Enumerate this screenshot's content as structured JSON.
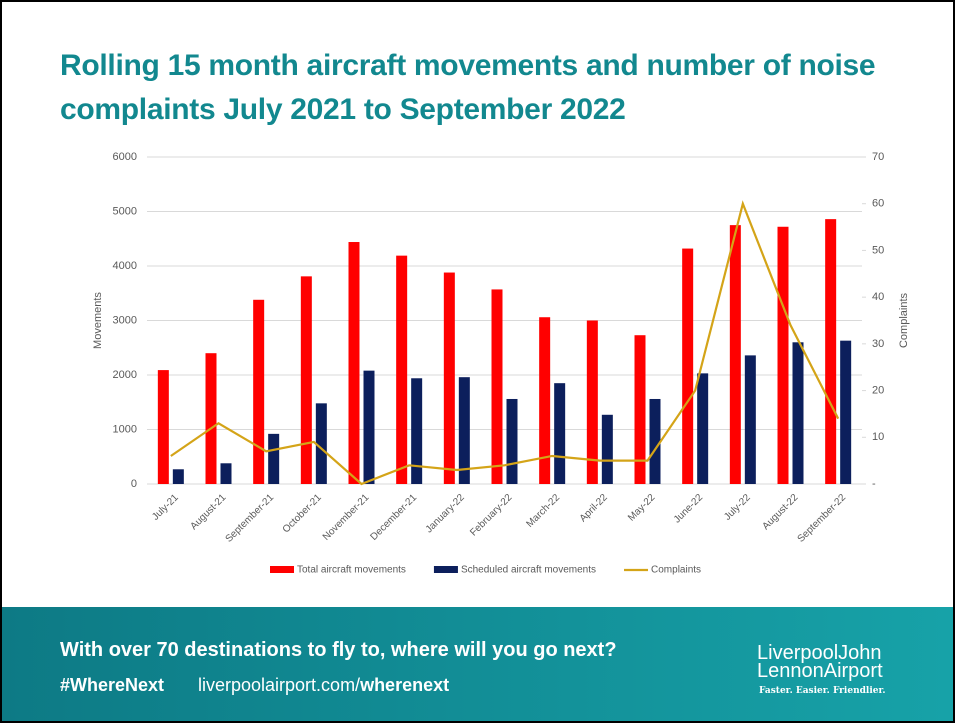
{
  "chart_data": {
    "type": "bar",
    "title": "Rolling 15 month aircraft movements and number of noise complaints July 2021 to September 2022",
    "y_label": "Movements",
    "y2_label": "Complaints",
    "categories": [
      "July-21",
      "August-21",
      "September-21",
      "October-21",
      "November-21",
      "December-21",
      "January-22",
      "February-22",
      "March-22",
      "April-22",
      "May-22",
      "June-22",
      "July-22",
      "August-22",
      "September-22"
    ],
    "series": [
      {
        "name": "Total aircraft movements",
        "type": "bar",
        "color": "#ff0000",
        "values": [
          2090,
          2400,
          3380,
          3810,
          4440,
          4190,
          3880,
          3570,
          3060,
          3000,
          2730,
          4320,
          4750,
          4720,
          4860
        ]
      },
      {
        "name": "Scheduled aircraft movements",
        "type": "bar",
        "color": "#0c1f5c",
        "values": [
          270,
          380,
          920,
          1480,
          2080,
          1940,
          1960,
          1560,
          1850,
          1270,
          1560,
          2030,
          2360,
          2600,
          2630
        ]
      },
      {
        "name": "Complaints",
        "type": "line",
        "axis": "y2",
        "color": "#d4a418",
        "values": [
          6,
          13,
          7,
          9,
          0,
          4,
          3,
          4,
          6,
          5,
          5,
          20,
          60,
          34,
          14
        ]
      }
    ],
    "ylim": [
      0,
      6000
    ],
    "yticks": [
      0,
      1000,
      2000,
      3000,
      4000,
      5000,
      6000
    ],
    "y2lim": [
      0,
      70
    ],
    "y2ticks": [
      {
        "value": 0,
        "label": "-"
      },
      10,
      20,
      30,
      40,
      50,
      60,
      70
    ],
    "grid": true,
    "legend": "bottom"
  },
  "footer": {
    "tagline": "With over 70 destinations to fly to, where will you go next?",
    "hashtag": "#WhereNext",
    "url": "liverpoolairport.com/",
    "url_bold": "wherenext",
    "logo_line1": "LiverpoolJohn",
    "logo_line2": "LennonAirport",
    "logo_slogan": "Faster. Easier. Friendlier."
  }
}
